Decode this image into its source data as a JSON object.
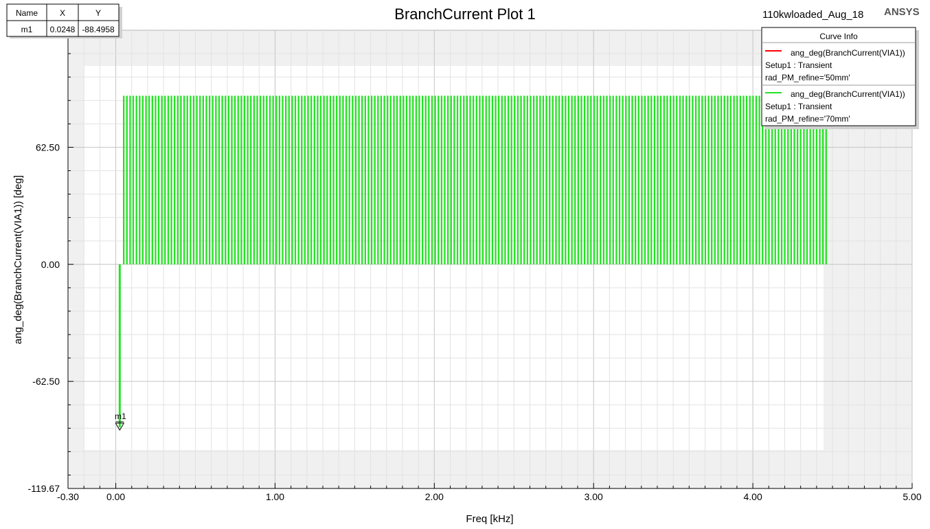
{
  "title": "BranchCurrent Plot 1",
  "design_name": "110kwloaded_Aug_18",
  "brand": "ANSYS",
  "marker_table": {
    "headers": [
      "Name",
      "X",
      "Y"
    ],
    "rows": [
      [
        "m1",
        "0.0248",
        "-88.4958"
      ]
    ]
  },
  "legend": {
    "title": "Curve Info",
    "entries": [
      {
        "label": "ang_deg(BranchCurrent(VIA1))",
        "setup": "Setup1 : Transient",
        "variation": "rad_PM_refine='50mm'",
        "color": "#ff0000"
      },
      {
        "label": "ang_deg(BranchCurrent(VIA1))",
        "setup": "Setup1 : Transient",
        "variation": "rad_PM_refine='70mm'",
        "color": "#00ff00"
      }
    ]
  },
  "markers": [
    {
      "name": "m1",
      "x": 0.0248,
      "y": -88.4958
    }
  ],
  "colors": {
    "trace": "#22e322",
    "plot_background": "#f0f0f0",
    "data_region": "#ffffff"
  },
  "chart_data": {
    "type": "line",
    "xlabel": "Freq [kHz]",
    "ylabel": "ang_deg(BranchCurrent(VIA1)) [deg]",
    "xlim": [
      -0.3,
      5.0
    ],
    "ylim": [
      -119.67,
      125.0
    ],
    "x_ticks": [
      -0.3,
      0.0,
      1.0,
      2.0,
      3.0,
      4.0,
      5.0
    ],
    "x_tick_labels": [
      "-0.30",
      "0.00",
      "1.00",
      "2.00",
      "3.00",
      "4.00",
      "5.00"
    ],
    "y_ticks": [
      -119.67,
      -62.5,
      0.0,
      62.5
    ],
    "y_tick_labels": [
      "-119.67",
      "-62.50",
      "0.00",
      "62.50"
    ],
    "grid": true,
    "legend_position": "top-right",
    "series": [
      {
        "name": "ang_deg(BranchCurrent(VIA1)) rad_PM_refine='50mm'",
        "color": "#ff0000",
        "points": []
      },
      {
        "name": "ang_deg(BranchCurrent(VIA1)) rad_PM_refine='70mm'",
        "color": "#22e322",
        "points": [
          [
            0.0248,
            -88.4958
          ]
        ],
        "bars": {
          "x_start": 0.05,
          "x_end": 4.46,
          "count": 222,
          "y_low": 0.0,
          "y_high": 90.0
        }
      }
    ]
  }
}
